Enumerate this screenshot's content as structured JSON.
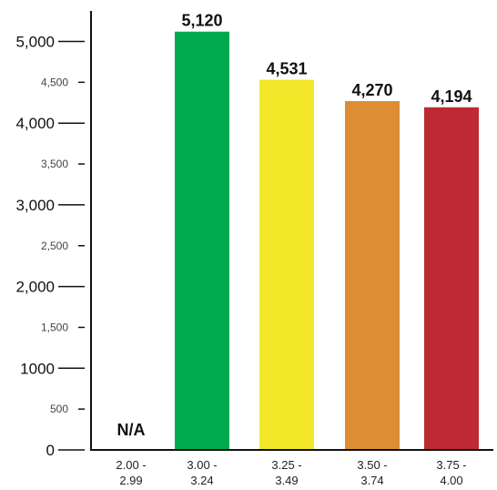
{
  "chart_data": {
    "type": "bar",
    "title": "",
    "xlabel": "",
    "ylabel": "",
    "ylim": [
      0,
      5500
    ],
    "yticks_major": [
      {
        "value": 0,
        "label": "0"
      },
      {
        "value": 1000,
        "label": "1000"
      },
      {
        "value": 2000,
        "label": "2,000"
      },
      {
        "value": 3000,
        "label": "3,000"
      },
      {
        "value": 4000,
        "label": "4,000"
      },
      {
        "value": 5000,
        "label": "5,000"
      }
    ],
    "yticks_minor": [
      {
        "value": 500,
        "label": "500"
      },
      {
        "value": 1500,
        "label": "1,500"
      },
      {
        "value": 2500,
        "label": "2,500"
      },
      {
        "value": 3500,
        "label": "3,500"
      },
      {
        "value": 4500,
        "label": "4,500"
      }
    ],
    "categories": [
      {
        "line1": "2.00 -",
        "line2": "2.99"
      },
      {
        "line1": "3.00 -",
        "line2": "3.24"
      },
      {
        "line1": "3.25 -",
        "line2": "3.49"
      },
      {
        "line1": "3.50 -",
        "line2": "3.74"
      },
      {
        "line1": "3.75 -",
        "line2": "4.00"
      }
    ],
    "values": [
      null,
      5120,
      4531,
      4270,
      4194
    ],
    "value_labels": [
      "N/A",
      "5,120",
      "4,531",
      "4,270",
      "4,194"
    ],
    "colors": [
      "#ffffff",
      "#00aa4f",
      "#f2e829",
      "#dd8d33",
      "#bd2a33"
    ],
    "grid": false,
    "legend": "none"
  }
}
